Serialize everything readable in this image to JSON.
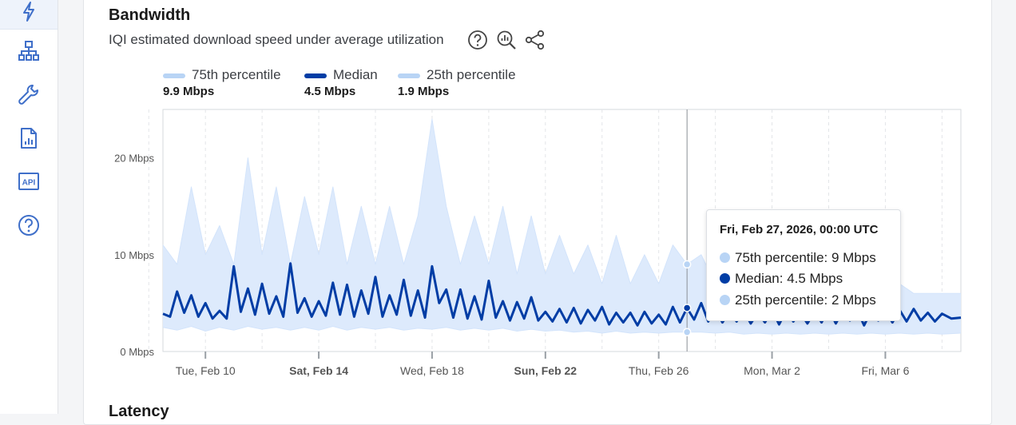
{
  "sidebar": {
    "items": [
      {
        "icon": "lightning-icon",
        "active": true
      },
      {
        "icon": "network-icon"
      },
      {
        "icon": "wrench-icon"
      },
      {
        "icon": "report-icon"
      },
      {
        "icon": "api-icon",
        "label": "API"
      },
      {
        "icon": "help-icon"
      }
    ]
  },
  "card": {
    "title": "Bandwidth",
    "subtitle": "IQI estimated download speed under average utilization",
    "tools": [
      "help-icon",
      "zoom-chart-icon",
      "share-icon"
    ]
  },
  "next_section_title": "Latency",
  "colors": {
    "median": "#003da5",
    "p75": "#b8d4f5",
    "p25": "#b8d4f5",
    "band": "#ddeafc",
    "accent": "#3f6fc9"
  },
  "legend": [
    {
      "name": "75th percentile",
      "value": "9.9 Mbps",
      "color": "#b8d4f5"
    },
    {
      "name": "Median",
      "value": "4.5 Mbps",
      "color": "#003da5"
    },
    {
      "name": "25th percentile",
      "value": "1.9 Mbps",
      "color": "#b8d4f5"
    }
  ],
  "tooltip": {
    "title": "Fri, Feb 27, 2026, 00:00 UTC",
    "rows": [
      {
        "label": "75th percentile: 9 Mbps",
        "color": "#b8d4f5"
      },
      {
        "label": "Median: 4.5 Mbps",
        "color": "#003da5"
      },
      {
        "label": "25th percentile: 2 Mbps",
        "color": "#b8d4f5"
      }
    ]
  },
  "chart_data": {
    "type": "area",
    "title": "Bandwidth",
    "subtitle": "IQI estimated download speed under average utilization",
    "ylim": [
      0,
      25
    ],
    "yticks": [
      {
        "value": 0,
        "label": "0 Mbps"
      },
      {
        "value": 10,
        "label": "10 Mbps"
      },
      {
        "value": 20,
        "label": "20 Mbps"
      }
    ],
    "xlim": [
      "2026-02-08T12:00",
      "2026-03-08T16:00"
    ],
    "xticks": [
      {
        "date": "2026-02-10",
        "label": "Tue, Feb 10",
        "bold": false
      },
      {
        "date": "2026-02-14",
        "label": "Sat, Feb 14",
        "bold": true
      },
      {
        "date": "2026-02-18",
        "label": "Wed, Feb 18",
        "bold": false
      },
      {
        "date": "2026-02-22",
        "label": "Sun, Feb 22",
        "bold": true
      },
      {
        "date": "2026-02-26",
        "label": "Thu, Feb 26",
        "bold": false
      },
      {
        "date": "2026-03-02",
        "label": "Mon, Mar 2",
        "bold": false
      },
      {
        "date": "2026-03-06",
        "label": "Fri, Mar 6",
        "bold": false
      }
    ],
    "minor_gridlines": [
      "2026-02-08",
      "2026-02-12",
      "2026-02-16",
      "2026-02-20",
      "2026-02-24",
      "2026-02-28",
      "2026-03-04",
      "2026-03-08"
    ],
    "hover_date": "2026-02-27",
    "series": [
      {
        "name": "75th percentile",
        "points": [
          [
            "2026-02-08T12:00",
            11
          ],
          [
            "2026-02-09T00:00",
            9
          ],
          [
            "2026-02-09T12:00",
            17
          ],
          [
            "2026-02-10T00:00",
            10
          ],
          [
            "2026-02-10T12:00",
            13
          ],
          [
            "2026-02-11T00:00",
            9
          ],
          [
            "2026-02-11T12:00",
            20
          ],
          [
            "2026-02-12T00:00",
            10
          ],
          [
            "2026-02-12T12:00",
            17
          ],
          [
            "2026-02-13T00:00",
            9
          ],
          [
            "2026-02-13T12:00",
            16
          ],
          [
            "2026-02-14T00:00",
            10
          ],
          [
            "2026-02-14T12:00",
            17
          ],
          [
            "2026-02-15T00:00",
            9
          ],
          [
            "2026-02-15T12:00",
            15
          ],
          [
            "2026-02-16T00:00",
            9
          ],
          [
            "2026-02-16T12:00",
            15
          ],
          [
            "2026-02-17T00:00",
            9
          ],
          [
            "2026-02-17T12:00",
            14
          ],
          [
            "2026-02-18T00:00",
            24
          ],
          [
            "2026-02-18T12:00",
            15
          ],
          [
            "2026-02-19T00:00",
            9
          ],
          [
            "2026-02-19T12:00",
            14
          ],
          [
            "2026-02-20T00:00",
            9
          ],
          [
            "2026-02-20T12:00",
            15
          ],
          [
            "2026-02-21T00:00",
            8
          ],
          [
            "2026-02-21T12:00",
            14
          ],
          [
            "2026-02-22T00:00",
            8
          ],
          [
            "2026-02-22T12:00",
            12
          ],
          [
            "2026-02-23T00:00",
            8
          ],
          [
            "2026-02-23T12:00",
            11
          ],
          [
            "2026-02-24T00:00",
            7
          ],
          [
            "2026-02-24T12:00",
            12
          ],
          [
            "2026-02-25T00:00",
            7
          ],
          [
            "2026-02-25T12:00",
            10
          ],
          [
            "2026-02-26T00:00",
            7
          ],
          [
            "2026-02-26T12:00",
            11
          ],
          [
            "2026-02-27T00:00",
            9
          ],
          [
            "2026-02-27T12:00",
            10
          ],
          [
            "2026-02-28T00:00",
            7
          ],
          [
            "2026-02-28T12:00",
            9
          ],
          [
            "2026-03-01T00:00",
            6
          ],
          [
            "2026-03-01T12:00",
            9
          ],
          [
            "2026-03-02T00:00",
            6
          ],
          [
            "2026-03-02T12:00",
            8
          ],
          [
            "2026-03-03T00:00",
            6
          ],
          [
            "2026-03-03T12:00",
            8
          ],
          [
            "2026-03-04T00:00",
            6
          ],
          [
            "2026-03-04T12:00",
            7
          ],
          [
            "2026-03-05T00:00",
            6
          ],
          [
            "2026-03-05T12:00",
            7
          ],
          [
            "2026-03-06T00:00",
            6
          ],
          [
            "2026-03-06T12:00",
            7
          ],
          [
            "2026-03-07T00:00",
            6
          ],
          [
            "2026-03-07T12:00",
            6
          ],
          [
            "2026-03-08T00:00",
            6
          ],
          [
            "2026-03-08T16:00",
            6
          ]
        ]
      },
      {
        "name": "Median",
        "points": [
          [
            "2026-02-08T12:00",
            3.9
          ],
          [
            "2026-02-08T18:00",
            3.6
          ],
          [
            "2026-02-09T00:00",
            6.2
          ],
          [
            "2026-02-09T06:00",
            4.0
          ],
          [
            "2026-02-09T12:00",
            5.8
          ],
          [
            "2026-02-09T18:00",
            3.6
          ],
          [
            "2026-02-10T00:00",
            5.0
          ],
          [
            "2026-02-10T06:00",
            3.4
          ],
          [
            "2026-02-10T12:00",
            4.2
          ],
          [
            "2026-02-10T18:00",
            3.4
          ],
          [
            "2026-02-11T00:00",
            8.8
          ],
          [
            "2026-02-11T06:00",
            4.1
          ],
          [
            "2026-02-11T12:00",
            6.5
          ],
          [
            "2026-02-11T18:00",
            3.8
          ],
          [
            "2026-02-12T00:00",
            7.0
          ],
          [
            "2026-02-12T06:00",
            3.9
          ],
          [
            "2026-02-12T12:00",
            5.7
          ],
          [
            "2026-02-12T18:00",
            3.6
          ],
          [
            "2026-02-13T00:00",
            9.1
          ],
          [
            "2026-02-13T06:00",
            4.0
          ],
          [
            "2026-02-13T12:00",
            5.5
          ],
          [
            "2026-02-13T18:00",
            3.6
          ],
          [
            "2026-02-14T00:00",
            5.2
          ],
          [
            "2026-02-14T06:00",
            3.7
          ],
          [
            "2026-02-14T12:00",
            7.1
          ],
          [
            "2026-02-14T18:00",
            3.8
          ],
          [
            "2026-02-15T00:00",
            6.9
          ],
          [
            "2026-02-15T06:00",
            3.6
          ],
          [
            "2026-02-15T12:00",
            6.3
          ],
          [
            "2026-02-15T18:00",
            3.9
          ],
          [
            "2026-02-16T00:00",
            7.7
          ],
          [
            "2026-02-16T06:00",
            3.6
          ],
          [
            "2026-02-16T12:00",
            5.8
          ],
          [
            "2026-02-16T18:00",
            3.8
          ],
          [
            "2026-02-17T00:00",
            7.4
          ],
          [
            "2026-02-17T06:00",
            3.7
          ],
          [
            "2026-02-17T12:00",
            6.3
          ],
          [
            "2026-02-17T18:00",
            3.5
          ],
          [
            "2026-02-18T00:00",
            8.8
          ],
          [
            "2026-02-18T06:00",
            5.0
          ],
          [
            "2026-02-18T12:00",
            6.4
          ],
          [
            "2026-02-18T18:00",
            3.5
          ],
          [
            "2026-02-19T00:00",
            6.4
          ],
          [
            "2026-02-19T06:00",
            3.4
          ],
          [
            "2026-02-19T12:00",
            5.7
          ],
          [
            "2026-02-19T18:00",
            3.3
          ],
          [
            "2026-02-20T00:00",
            7.3
          ],
          [
            "2026-02-20T06:00",
            3.5
          ],
          [
            "2026-02-20T12:00",
            5.2
          ],
          [
            "2026-02-20T18:00",
            3.2
          ],
          [
            "2026-02-21T00:00",
            5.1
          ],
          [
            "2026-02-21T06:00",
            3.4
          ],
          [
            "2026-02-21T12:00",
            5.6
          ],
          [
            "2026-02-21T18:00",
            3.2
          ],
          [
            "2026-02-22T00:00",
            4.1
          ],
          [
            "2026-02-22T06:00",
            3.1
          ],
          [
            "2026-02-22T12:00",
            4.4
          ],
          [
            "2026-02-22T18:00",
            3.0
          ],
          [
            "2026-02-23T00:00",
            4.5
          ],
          [
            "2026-02-23T06:00",
            2.9
          ],
          [
            "2026-02-23T12:00",
            4.3
          ],
          [
            "2026-02-23T18:00",
            3.2
          ],
          [
            "2026-02-24T00:00",
            4.6
          ],
          [
            "2026-02-24T06:00",
            2.8
          ],
          [
            "2026-02-24T12:00",
            4.0
          ],
          [
            "2026-02-24T18:00",
            3.0
          ],
          [
            "2026-02-25T00:00",
            4.0
          ],
          [
            "2026-02-25T06:00",
            2.7
          ],
          [
            "2026-02-25T12:00",
            4.1
          ],
          [
            "2026-02-25T18:00",
            2.9
          ],
          [
            "2026-02-26T00:00",
            3.8
          ],
          [
            "2026-02-26T06:00",
            2.8
          ],
          [
            "2026-02-26T12:00",
            4.6
          ],
          [
            "2026-02-26T18:00",
            3.0
          ],
          [
            "2026-02-27T00:00",
            4.5
          ],
          [
            "2026-02-27T06:00",
            3.3
          ],
          [
            "2026-02-27T12:00",
            5.0
          ],
          [
            "2026-02-27T18:00",
            3.1
          ],
          [
            "2026-02-28T00:00",
            4.3
          ],
          [
            "2026-02-28T06:00",
            3.0
          ],
          [
            "2026-02-28T12:00",
            4.1
          ],
          [
            "2026-02-28T18:00",
            3.1
          ],
          [
            "2026-03-01T00:00",
            4.2
          ],
          [
            "2026-03-01T06:00",
            2.9
          ],
          [
            "2026-03-01T12:00",
            4.0
          ],
          [
            "2026-03-01T18:00",
            3.0
          ],
          [
            "2026-03-02T00:00",
            4.3
          ],
          [
            "2026-03-02T06:00",
            2.8
          ],
          [
            "2026-03-02T12:00",
            4.2
          ],
          [
            "2026-03-02T18:00",
            3.1
          ],
          [
            "2026-03-03T00:00",
            4.0
          ],
          [
            "2026-03-03T06:00",
            2.9
          ],
          [
            "2026-03-03T12:00",
            4.1
          ],
          [
            "2026-03-03T18:00",
            3.0
          ],
          [
            "2026-03-04T00:00",
            4.4
          ],
          [
            "2026-03-04T06:00",
            2.9
          ],
          [
            "2026-03-04T12:00",
            4.2
          ],
          [
            "2026-03-04T18:00",
            3.2
          ],
          [
            "2026-03-05T00:00",
            4.3
          ],
          [
            "2026-03-05T06:00",
            2.7
          ],
          [
            "2026-03-05T12:00",
            4.2
          ],
          [
            "2026-03-05T18:00",
            3.2
          ],
          [
            "2026-03-06T00:00",
            4.2
          ],
          [
            "2026-03-06T06:00",
            3.0
          ],
          [
            "2026-03-06T12:00",
            4.3
          ],
          [
            "2026-03-06T18:00",
            3.1
          ],
          [
            "2026-03-07T00:00",
            4.4
          ],
          [
            "2026-03-07T06:00",
            3.2
          ],
          [
            "2026-03-07T12:00",
            4.0
          ],
          [
            "2026-03-07T18:00",
            3.1
          ],
          [
            "2026-03-08T00:00",
            3.9
          ],
          [
            "2026-03-08T08:00",
            3.4
          ],
          [
            "2026-03-08T16:00",
            3.5
          ]
        ]
      },
      {
        "name": "25th percentile",
        "points": [
          [
            "2026-02-08T12:00",
            2.5
          ],
          [
            "2026-02-09T00:00",
            2.2
          ],
          [
            "2026-02-09T12:00",
            2.6
          ],
          [
            "2026-02-10T00:00",
            2.1
          ],
          [
            "2026-02-10T12:00",
            2.5
          ],
          [
            "2026-02-11T00:00",
            2.2
          ],
          [
            "2026-02-11T12:00",
            2.6
          ],
          [
            "2026-02-12T00:00",
            2.3
          ],
          [
            "2026-02-12T12:00",
            2.5
          ],
          [
            "2026-02-13T00:00",
            2.2
          ],
          [
            "2026-02-13T12:00",
            2.5
          ],
          [
            "2026-02-14T00:00",
            2.2
          ],
          [
            "2026-02-14T12:00",
            2.6
          ],
          [
            "2026-02-15T00:00",
            2.2
          ],
          [
            "2026-02-15T12:00",
            2.5
          ],
          [
            "2026-02-16T00:00",
            2.3
          ],
          [
            "2026-02-16T12:00",
            2.5
          ],
          [
            "2026-02-17T00:00",
            2.2
          ],
          [
            "2026-02-17T12:00",
            2.4
          ],
          [
            "2026-02-18T00:00",
            2.3
          ],
          [
            "2026-02-18T12:00",
            2.5
          ],
          [
            "2026-02-19T00:00",
            2.2
          ],
          [
            "2026-02-19T12:00",
            2.4
          ],
          [
            "2026-02-20T00:00",
            2.2
          ],
          [
            "2026-02-20T12:00",
            2.4
          ],
          [
            "2026-02-21T00:00",
            2.1
          ],
          [
            "2026-02-21T12:00",
            2.3
          ],
          [
            "2026-02-22T00:00",
            2.1
          ],
          [
            "2026-02-22T12:00",
            2.2
          ],
          [
            "2026-02-23T00:00",
            2.0
          ],
          [
            "2026-02-23T12:00",
            2.1
          ],
          [
            "2026-02-24T00:00",
            1.9
          ],
          [
            "2026-02-24T12:00",
            2.1
          ],
          [
            "2026-02-25T00:00",
            1.9
          ],
          [
            "2026-02-25T12:00",
            2.0
          ],
          [
            "2026-02-26T00:00",
            1.9
          ],
          [
            "2026-02-26T12:00",
            2.0
          ],
          [
            "2026-02-27T00:00",
            2.0
          ],
          [
            "2026-02-27T12:00",
            2.0
          ],
          [
            "2026-02-28T00:00",
            1.9
          ],
          [
            "2026-02-28T12:00",
            2.0
          ],
          [
            "2026-03-01T00:00",
            1.8
          ],
          [
            "2026-03-01T12:00",
            1.9
          ],
          [
            "2026-03-02T00:00",
            1.8
          ],
          [
            "2026-03-02T12:00",
            1.9
          ],
          [
            "2026-03-03T00:00",
            1.8
          ],
          [
            "2026-03-03T12:00",
            1.9
          ],
          [
            "2026-03-04T00:00",
            1.8
          ],
          [
            "2026-03-04T12:00",
            1.9
          ],
          [
            "2026-03-05T00:00",
            1.8
          ],
          [
            "2026-03-05T12:00",
            1.9
          ],
          [
            "2026-03-06T00:00",
            1.8
          ],
          [
            "2026-03-06T12:00",
            1.9
          ],
          [
            "2026-03-07T00:00",
            1.8
          ],
          [
            "2026-03-07T12:00",
            1.9
          ],
          [
            "2026-03-08T00:00",
            1.8
          ],
          [
            "2026-03-08T16:00",
            1.9
          ]
        ]
      }
    ]
  }
}
